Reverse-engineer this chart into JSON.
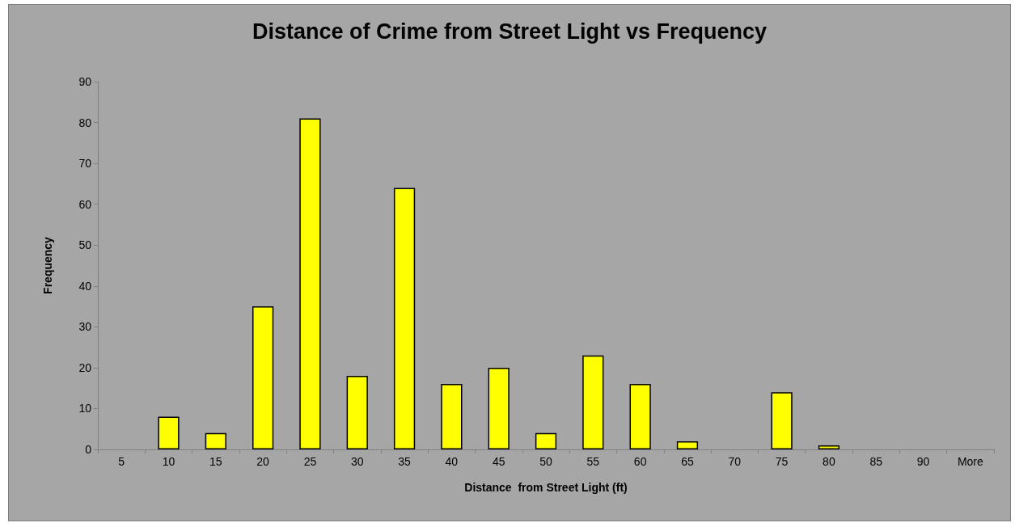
{
  "chart_data": {
    "type": "bar",
    "title": "Distance of Crime from Street Light vs Frequency",
    "xlabel": "Distance  from Street Light (ft)",
    "ylabel": "Frequency",
    "categories": [
      "5",
      "10",
      "15",
      "20",
      "25",
      "30",
      "35",
      "40",
      "45",
      "50",
      "55",
      "60",
      "65",
      "70",
      "75",
      "80",
      "85",
      "90",
      "More"
    ],
    "values": [
      0,
      8,
      4,
      35,
      81,
      18,
      64,
      16,
      20,
      4,
      23,
      16,
      2,
      0,
      14,
      1,
      0,
      0,
      0
    ],
    "color": "#ffff00",
    "ylim": [
      0,
      90
    ],
    "yticks": [
      0,
      10,
      20,
      30,
      40,
      50,
      60,
      70,
      80,
      90
    ]
  }
}
